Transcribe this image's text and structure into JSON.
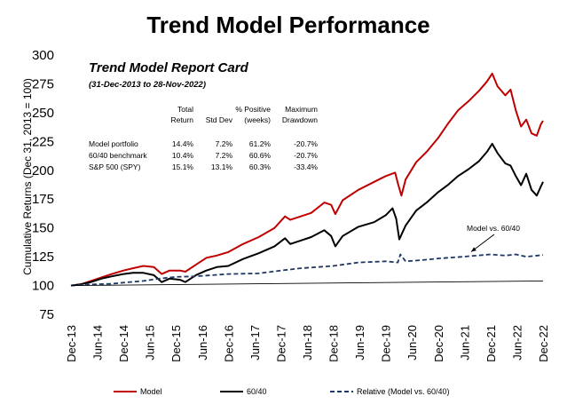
{
  "chart_data": {
    "type": "line",
    "title": "Trend Model Performance",
    "ylabel": "Cumulative Returns (Dec 31, 2013 = 100)",
    "xlabel": "",
    "ylim": [
      75,
      300
    ],
    "yticks": [
      "75",
      "100",
      "125",
      "150",
      "175",
      "200",
      "225",
      "250",
      "275",
      "300"
    ],
    "xlim": [
      2013.92,
      2022.92
    ],
    "xticks": [
      {
        "label": "Dec-13",
        "x": 2013.92
      },
      {
        "label": "Jun-14",
        "x": 2014.42
      },
      {
        "label": "Dec-14",
        "x": 2014.92
      },
      {
        "label": "Jun-15",
        "x": 2015.42
      },
      {
        "label": "Dec-15",
        "x": 2015.92
      },
      {
        "label": "Jun-16",
        "x": 2016.42
      },
      {
        "label": "Dec-16",
        "x": 2016.92
      },
      {
        "label": "Jun-17",
        "x": 2017.42
      },
      {
        "label": "Dec-17",
        "x": 2017.92
      },
      {
        "label": "Jun-18",
        "x": 2018.42
      },
      {
        "label": "Dec-18",
        "x": 2018.92
      },
      {
        "label": "Jun-19",
        "x": 2019.42
      },
      {
        "label": "Dec-19",
        "x": 2019.92
      },
      {
        "label": "Jun-20",
        "x": 2020.42
      },
      {
        "label": "Dec-20",
        "x": 2020.92
      },
      {
        "label": "Jun-21",
        "x": 2021.42
      },
      {
        "label": "Dec-21",
        "x": 2021.92
      },
      {
        "label": "Jun-22",
        "x": 2022.42
      },
      {
        "label": "Dec-22",
        "x": 2022.92
      }
    ],
    "series": [
      {
        "name": "Model",
        "color": "#c00000",
        "dash": "solid",
        "points": [
          [
            2013.92,
            100
          ],
          [
            2014.1,
            101
          ],
          [
            2014.3,
            104
          ],
          [
            2014.5,
            107
          ],
          [
            2014.7,
            110
          ],
          [
            2014.92,
            113
          ],
          [
            2015.1,
            115
          ],
          [
            2015.3,
            117
          ],
          [
            2015.5,
            116
          ],
          [
            2015.65,
            110
          ],
          [
            2015.8,
            113
          ],
          [
            2016.0,
            113
          ],
          [
            2016.1,
            112
          ],
          [
            2016.3,
            118
          ],
          [
            2016.5,
            124
          ],
          [
            2016.7,
            126
          ],
          [
            2016.92,
            129
          ],
          [
            2017.2,
            136
          ],
          [
            2017.5,
            142
          ],
          [
            2017.8,
            150
          ],
          [
            2018.0,
            160
          ],
          [
            2018.1,
            157
          ],
          [
            2018.3,
            160
          ],
          [
            2018.5,
            163
          ],
          [
            2018.75,
            172
          ],
          [
            2018.88,
            170
          ],
          [
            2018.96,
            162
          ],
          [
            2019.1,
            174
          ],
          [
            2019.4,
            183
          ],
          [
            2019.7,
            190
          ],
          [
            2019.92,
            195
          ],
          [
            2020.1,
            198
          ],
          [
            2020.15,
            189
          ],
          [
            2020.22,
            178
          ],
          [
            2020.3,
            192
          ],
          [
            2020.5,
            207
          ],
          [
            2020.7,
            216
          ],
          [
            2020.92,
            228
          ],
          [
            2021.1,
            240
          ],
          [
            2021.3,
            252
          ],
          [
            2021.5,
            260
          ],
          [
            2021.7,
            269
          ],
          [
            2021.85,
            277
          ],
          [
            2021.95,
            284
          ],
          [
            2022.05,
            273
          ],
          [
            2022.2,
            265
          ],
          [
            2022.3,
            270
          ],
          [
            2022.4,
            252
          ],
          [
            2022.5,
            238
          ],
          [
            2022.6,
            244
          ],
          [
            2022.7,
            232
          ],
          [
            2022.8,
            230
          ],
          [
            2022.88,
            240
          ],
          [
            2022.92,
            243
          ]
        ]
      },
      {
        "name": "60/40",
        "color": "#000000",
        "dash": "solid",
        "points": [
          [
            2013.92,
            100
          ],
          [
            2014.1,
            101
          ],
          [
            2014.3,
            103
          ],
          [
            2014.5,
            106
          ],
          [
            2014.7,
            108
          ],
          [
            2014.92,
            110
          ],
          [
            2015.1,
            111
          ],
          [
            2015.3,
            111
          ],
          [
            2015.5,
            109
          ],
          [
            2015.65,
            103
          ],
          [
            2015.8,
            106
          ],
          [
            2016.0,
            105
          ],
          [
            2016.1,
            103
          ],
          [
            2016.3,
            109
          ],
          [
            2016.5,
            113
          ],
          [
            2016.7,
            116
          ],
          [
            2016.92,
            117
          ],
          [
            2017.2,
            123
          ],
          [
            2017.5,
            128
          ],
          [
            2017.8,
            134
          ],
          [
            2018.0,
            141
          ],
          [
            2018.1,
            136
          ],
          [
            2018.3,
            139
          ],
          [
            2018.5,
            142
          ],
          [
            2018.75,
            148
          ],
          [
            2018.88,
            143
          ],
          [
            2018.96,
            134
          ],
          [
            2019.1,
            143
          ],
          [
            2019.4,
            151
          ],
          [
            2019.7,
            155
          ],
          [
            2019.92,
            161
          ],
          [
            2020.05,
            167
          ],
          [
            2020.12,
            158
          ],
          [
            2020.18,
            140
          ],
          [
            2020.3,
            152
          ],
          [
            2020.5,
            165
          ],
          [
            2020.7,
            172
          ],
          [
            2020.92,
            181
          ],
          [
            2021.1,
            187
          ],
          [
            2021.3,
            195
          ],
          [
            2021.5,
            201
          ],
          [
            2021.7,
            208
          ],
          [
            2021.85,
            216
          ],
          [
            2021.95,
            223
          ],
          [
            2022.05,
            215
          ],
          [
            2022.2,
            206
          ],
          [
            2022.3,
            204
          ],
          [
            2022.4,
            195
          ],
          [
            2022.5,
            187
          ],
          [
            2022.6,
            197
          ],
          [
            2022.7,
            183
          ],
          [
            2022.8,
            178
          ],
          [
            2022.88,
            186
          ],
          [
            2022.92,
            190
          ]
        ]
      },
      {
        "name": "Relative (Model vs. 60/40)",
        "color": "#1f3864",
        "dash": "dashed",
        "points": [
          [
            2013.92,
            100
          ],
          [
            2014.3,
            101
          ],
          [
            2014.7,
            101.5
          ],
          [
            2014.92,
            102.5
          ],
          [
            2015.3,
            104
          ],
          [
            2015.6,
            106
          ],
          [
            2015.92,
            107.5
          ],
          [
            2016.3,
            108
          ],
          [
            2016.92,
            110
          ],
          [
            2017.5,
            110.5
          ],
          [
            2017.92,
            113
          ],
          [
            2018.3,
            115
          ],
          [
            2018.92,
            117
          ],
          [
            2019.4,
            120
          ],
          [
            2019.92,
            121
          ],
          [
            2020.15,
            120
          ],
          [
            2020.2,
            127
          ],
          [
            2020.3,
            121
          ],
          [
            2020.6,
            122
          ],
          [
            2020.92,
            123.5
          ],
          [
            2021.4,
            125
          ],
          [
            2021.92,
            127
          ],
          [
            2022.2,
            126
          ],
          [
            2022.4,
            127
          ],
          [
            2022.6,
            125
          ],
          [
            2022.92,
            126.5
          ]
        ]
      },
      {
        "name": "Trend line",
        "color": "#000000",
        "dash": "thin",
        "points": [
          [
            2013.92,
            100
          ],
          [
            2022.92,
            104
          ]
        ]
      }
    ],
    "annotation": {
      "text": "Model vs. 60/40",
      "x": 2021.4,
      "y": 134,
      "arrow_to": [
        2021.55,
        127
      ]
    },
    "report_card": {
      "title": "Trend Model Report Card",
      "subtitle": "(31-Dec-2013 to 28-Nov-2022)",
      "headers": [
        [
          "",
          ""
        ],
        [
          "Total",
          "Return"
        ],
        [
          "",
          "Std Dev"
        ],
        [
          "% Positive",
          "(weeks)"
        ],
        [
          "Maximum",
          "Drawdown"
        ]
      ],
      "rows": [
        {
          "label": "Model portfolio",
          "cells": [
            "14.4%",
            "7.2%",
            "61.2%",
            "-20.7%"
          ]
        },
        {
          "label": "60/40 benchmark",
          "cells": [
            "10.4%",
            "7.2%",
            "60.6%",
            "-20.7%"
          ]
        },
        {
          "label": "S&P 500 (SPY)",
          "cells": [
            "15.1%",
            "13.1%",
            "60.3%",
            "-33.4%"
          ]
        }
      ]
    },
    "legend": [
      {
        "label": "Model",
        "color": "#c00000",
        "dash": "solid"
      },
      {
        "label": "60/40",
        "color": "#000000",
        "dash": "solid"
      },
      {
        "label": "Relative (Model vs. 60/40)",
        "color": "#1f3864",
        "dash": "dashed"
      }
    ]
  }
}
